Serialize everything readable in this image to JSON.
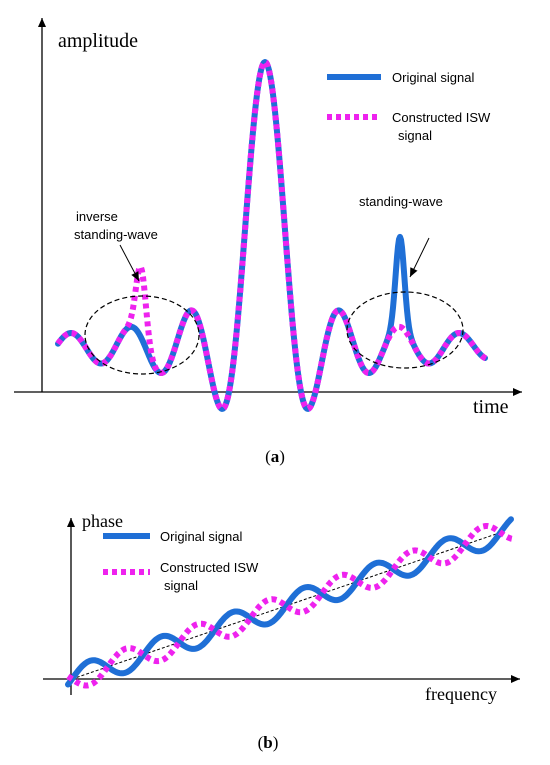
{
  "panel_a": {
    "y_axis_label": "amplitude",
    "x_axis_label": "time",
    "legend": {
      "original": "Original signal",
      "constructed_line1": "Constructed ISW",
      "constructed_line2": "signal"
    },
    "annotation_left_line1": "inverse",
    "annotation_left_line2": "standing-wave",
    "annotation_right": "standing-wave",
    "caption_letter": "a"
  },
  "panel_b": {
    "y_axis_label": "phase",
    "x_axis_label": "frequency",
    "legend": {
      "original": "Original signal",
      "constructed_line1": "Constructed ISW",
      "constructed_line2": "signal"
    },
    "caption_letter": "b"
  },
  "colors": {
    "original": "#1f6fd6",
    "constructed": "#ee22ee",
    "axis": "#000000",
    "trend": "#000000"
  }
}
